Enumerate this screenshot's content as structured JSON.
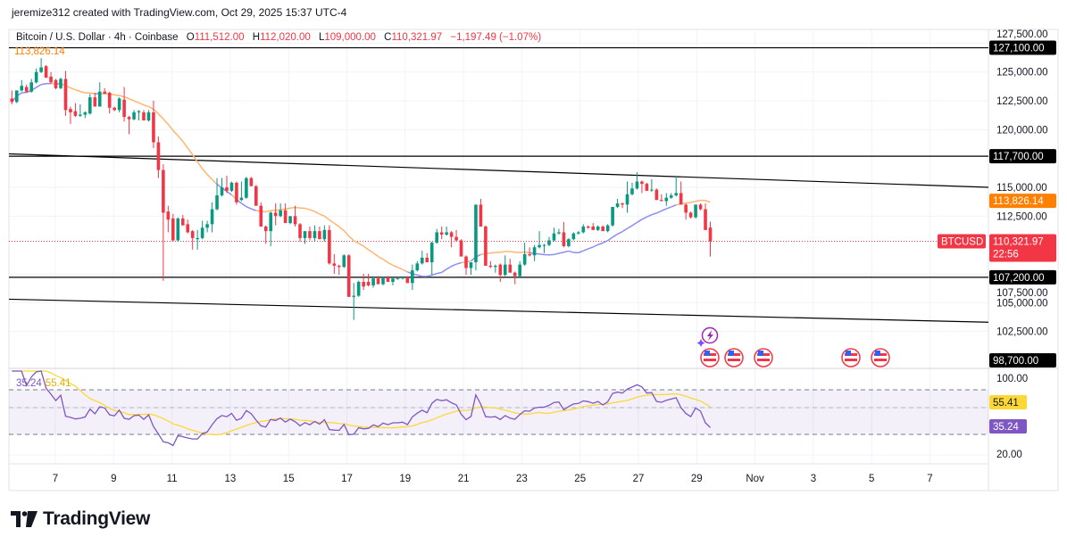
{
  "credit": "jeremize312 created with TradingView.com, Oct 29, 2025 15:37 UTC-4",
  "symbol": {
    "title": "Bitcoin / U.S. Dollar · 4h · Coinbase",
    "open_label": "O",
    "open": "111,512.00",
    "high_label": "H",
    "high": "112,020.00",
    "low_label": "L",
    "low": "109,000.00",
    "close_label": "C",
    "close": "110,321.97",
    "change": "−1,197.49 (−1.07%)"
  },
  "ma_value": "113,826.14",
  "rsi": {
    "value": "35.24",
    "ma_value": "55.41"
  },
  "price_axis": {
    "ticks": [
      "127,500.00",
      "125,000.00",
      "122,500.00",
      "120,000.00",
      "115,000.00",
      "112,500.00",
      "107,500.00",
      "105,000.00",
      "102,500.00"
    ],
    "tick_values": [
      127500,
      125000,
      122500,
      120000,
      115000,
      112500,
      107500,
      105000,
      102500
    ],
    "rsi_ticks": [
      "100.00",
      "20.00"
    ],
    "levels": [
      {
        "value": 127100,
        "label": "127,100.00"
      },
      {
        "value": 117700,
        "label": "117,700.00"
      },
      {
        "value": 107200,
        "label": "107,200.00"
      },
      {
        "value": 98700,
        "label": "98,700.00"
      }
    ],
    "ma_tag": "113,826.14",
    "symbol_tag": "BTCUSD",
    "last_price_tag": "110,321.97",
    "countdown": "22:56",
    "rsi_ma_tag": "55.41",
    "rsi_tag": "35.24"
  },
  "time_axis": [
    "7",
    "9",
    "11",
    "13",
    "15",
    "17",
    "19",
    "21",
    "23",
    "25",
    "27",
    "29",
    "Nov",
    "3",
    "5",
    "7"
  ],
  "events": [
    "ai-lightning-icon",
    "us-flag-icon",
    "us-flag-icon",
    "us-flag-icon",
    "us-flag-icon",
    "us-flag-icon"
  ],
  "colors": {
    "up": "#089981",
    "down": "#f23645",
    "ma_below": "#ffb570",
    "ma_above": "#8a8df2",
    "rsi": "#7e57c2",
    "rsi_ma": "#fdd835",
    "last_price": "#f23645",
    "ma_tag": "#ff7f00"
  },
  "logo": "TradingView",
  "chart_data": {
    "type": "candlestick",
    "interval": "4h",
    "x_ticks": [
      "7",
      "9",
      "11",
      "13",
      "15",
      "17",
      "19",
      "21",
      "23",
      "25",
      "27",
      "29",
      "Nov",
      "3",
      "5",
      "7"
    ],
    "ylim": [
      101000,
      128500
    ],
    "horizontal_levels": [
      127100,
      117700,
      107200,
      98700
    ],
    "trendlines": [
      [
        117900,
        115000
      ],
      [
        105300,
        103300
      ]
    ],
    "ohlc": [
      [
        122700,
        123400,
        122200,
        122400
      ],
      [
        122400,
        123400,
        122300,
        123400
      ],
      [
        123400,
        124300,
        123300,
        123800
      ],
      [
        123700,
        123900,
        123200,
        123300
      ],
      [
        123300,
        124400,
        123200,
        124100
      ],
      [
        124100,
        125300,
        124000,
        125000
      ],
      [
        125000,
        126200,
        124900,
        125400
      ],
      [
        125500,
        125600,
        124500,
        124500
      ],
      [
        124600,
        125000,
        124000,
        124100
      ],
      [
        124300,
        124400,
        123500,
        123600
      ],
      [
        123600,
        124500,
        123500,
        124400
      ],
      [
        124400,
        125100,
        121200,
        121700
      ],
      [
        121800,
        122000,
        120500,
        121500
      ],
      [
        121600,
        122300,
        121100,
        121200
      ],
      [
        121200,
        122200,
        121100,
        121300
      ],
      [
        121300,
        121600,
        121000,
        121500
      ],
      [
        121400,
        123100,
        121300,
        122800
      ],
      [
        122800,
        123200,
        122000,
        122000
      ],
      [
        122000,
        124100,
        122000,
        123300
      ],
      [
        123300,
        123600,
        123100,
        123100
      ],
      [
        123200,
        123300,
        121400,
        121900
      ],
      [
        121900,
        122000,
        121600,
        121700
      ],
      [
        121700,
        122800,
        121500,
        122700
      ],
      [
        122600,
        123700,
        120700,
        121100
      ],
      [
        121100,
        121200,
        119600,
        120900
      ],
      [
        120900,
        121700,
        120800,
        121500
      ],
      [
        121500,
        121700,
        120800,
        121600
      ],
      [
        121500,
        121700,
        120800,
        120800
      ],
      [
        120800,
        121700,
        120700,
        121500
      ],
      [
        121500,
        122500,
        118400,
        118900
      ],
      [
        118900,
        119400,
        115800,
        116500
      ],
      [
        116500,
        117000,
        106900,
        112800
      ],
      [
        112900,
        113400,
        111100,
        112200
      ],
      [
        112300,
        112700,
        110300,
        110400
      ],
      [
        110400,
        112400,
        110300,
        112300
      ],
      [
        112300,
        112600,
        111700,
        111700
      ],
      [
        111800,
        112200,
        111000,
        111100
      ],
      [
        111200,
        111300,
        109600,
        110600
      ],
      [
        110500,
        111300,
        109600,
        110600
      ],
      [
        110600,
        112100,
        110500,
        111500
      ],
      [
        111500,
        112100,
        111100,
        111800
      ],
      [
        111800,
        113700,
        111100,
        113100
      ],
      [
        113100,
        115800,
        113000,
        114300
      ],
      [
        114300,
        115800,
        114200,
        115000
      ],
      [
        115000,
        116000,
        114500,
        114700
      ],
      [
        114700,
        115500,
        114600,
        115400
      ],
      [
        115400,
        115500,
        113500,
        113700
      ],
      [
        113900,
        115500,
        113800,
        114100
      ],
      [
        114100,
        115900,
        114000,
        115800
      ],
      [
        115800,
        115900,
        115100,
        115100
      ],
      [
        115100,
        115200,
        113400,
        113400
      ],
      [
        113400,
        113700,
        111600,
        111600
      ],
      [
        111600,
        111700,
        110100,
        111200
      ],
      [
        111200,
        112900,
        109900,
        112800
      ],
      [
        112800,
        113600,
        111700,
        112500
      ],
      [
        112500,
        113600,
        112400,
        113000
      ],
      [
        113000,
        113600,
        111900,
        111900
      ],
      [
        111900,
        112500,
        111800,
        112500
      ],
      [
        112500,
        113400,
        111600,
        111800
      ],
      [
        111800,
        111900,
        110300,
        110600
      ],
      [
        110600,
        111200,
        110100,
        111200
      ],
      [
        111200,
        111600,
        110400,
        110600
      ],
      [
        110600,
        111700,
        110300,
        111200
      ],
      [
        111200,
        111600,
        110500,
        110500
      ],
      [
        110500,
        111700,
        110300,
        111300
      ],
      [
        111300,
        111700,
        108300,
        108400
      ],
      [
        108400,
        109200,
        107500,
        108200
      ],
      [
        108200,
        108300,
        107400,
        108100
      ],
      [
        108100,
        109200,
        108000,
        109100
      ],
      [
        109100,
        109200,
        105500,
        105500
      ],
      [
        105500,
        106700,
        103500,
        105600
      ],
      [
        105600,
        106900,
        105500,
        106800
      ],
      [
        106800,
        107500,
        106100,
        106400
      ],
      [
        106800,
        107500,
        106400,
        106500
      ],
      [
        106500,
        107300,
        106300,
        107100
      ],
      [
        107100,
        107300,
        106600,
        106600
      ],
      [
        106600,
        107200,
        106500,
        107200
      ],
      [
        107200,
        107300,
        106800,
        106800
      ],
      [
        106800,
        107100,
        106500,
        107100
      ],
      [
        107100,
        107200,
        107000,
        107100
      ],
      [
        107100,
        107300,
        107000,
        107200
      ],
      [
        107200,
        107300,
        106700,
        106700
      ],
      [
        106700,
        108300,
        106100,
        107800
      ],
      [
        107800,
        108600,
        107700,
        108400
      ],
      [
        108400,
        109500,
        108300,
        108900
      ],
      [
        108900,
        109300,
        108500,
        108500
      ],
      [
        108500,
        110300,
        107400,
        110200
      ],
      [
        110200,
        111400,
        110100,
        111100
      ],
      [
        111100,
        111600,
        110500,
        110900
      ],
      [
        110900,
        111600,
        110800,
        111100
      ],
      [
        111100,
        111200,
        109800,
        110700
      ],
      [
        110700,
        111300,
        110300,
        110400
      ],
      [
        110400,
        110500,
        109000,
        109000
      ],
      [
        109000,
        109100,
        107400,
        108000
      ],
      [
        108000,
        108500,
        107400,
        108500
      ],
      [
        108500,
        113500,
        107800,
        113500
      ],
      [
        113500,
        114000,
        111600,
        111600
      ],
      [
        111600,
        111700,
        108200,
        108200
      ],
      [
        108200,
        108600,
        108000,
        108100
      ],
      [
        108100,
        108300,
        107600,
        108200
      ],
      [
        108300,
        108400,
        106800,
        107400
      ],
      [
        107400,
        109100,
        107300,
        108300
      ],
      [
        108300,
        108800,
        107600,
        107600
      ],
      [
        107600,
        107700,
        106600,
        107300
      ],
      [
        107300,
        108600,
        107200,
        108300
      ],
      [
        108300,
        110200,
        108200,
        109200
      ],
      [
        109200,
        109800,
        109000,
        109100
      ],
      [
        109100,
        110000,
        108600,
        109800
      ],
      [
        109800,
        111200,
        109700,
        110000
      ],
      [
        110000,
        110100,
        109300,
        110000
      ],
      [
        110000,
        110700,
        109900,
        110400
      ],
      [
        110400,
        111500,
        110300,
        111000
      ],
      [
        111000,
        111400,
        110900,
        111100
      ],
      [
        111100,
        112000,
        109800,
        109900
      ],
      [
        109900,
        110600,
        109800,
        110500
      ],
      [
        110500,
        111100,
        110400,
        111000
      ],
      [
        111000,
        111200,
        110900,
        111100
      ],
      [
        111100,
        111800,
        111000,
        111600
      ],
      [
        111600,
        111700,
        111400,
        111500
      ],
      [
        111600,
        111900,
        111300,
        111300
      ],
      [
        111300,
        111700,
        111200,
        111600
      ],
      [
        111600,
        111700,
        111200,
        111200
      ],
      [
        111200,
        111800,
        111100,
        111700
      ],
      [
        111700,
        113300,
        111600,
        113300
      ],
      [
        113300,
        114000,
        113200,
        113600
      ],
      [
        113600,
        113700,
        113200,
        113500
      ],
      [
        113500,
        115500,
        112800,
        114400
      ],
      [
        114400,
        115400,
        114300,
        114900
      ],
      [
        114900,
        116300,
        114800,
        115500
      ],
      [
        115500,
        115600,
        114500,
        115300
      ],
      [
        115300,
        115400,
        114700,
        114700
      ],
      [
        114800,
        115700,
        114600,
        114800
      ],
      [
        114800,
        114900,
        113900,
        113900
      ],
      [
        113900,
        114400,
        113800,
        113800
      ],
      [
        113800,
        114500,
        113400,
        114100
      ],
      [
        114100,
        114500,
        114000,
        114300
      ],
      [
        114300,
        116000,
        114200,
        114500
      ],
      [
        114500,
        115500,
        113500,
        113500
      ],
      [
        113500,
        113600,
        112200,
        112800
      ],
      [
        112800,
        112900,
        112300,
        112400
      ],
      [
        112400,
        113500,
        112300,
        113500
      ],
      [
        113500,
        113600,
        113000,
        113100
      ],
      [
        113100,
        113600,
        111300,
        111300
      ],
      [
        111512,
        112020,
        109000,
        110322
      ]
    ],
    "indicators": [
      {
        "type": "moving_average",
        "last": 113826.14
      },
      {
        "type": "rsi",
        "last": 35.24,
        "ma_last": 55.41,
        "bands": [
          70,
          30
        ]
      }
    ]
  }
}
